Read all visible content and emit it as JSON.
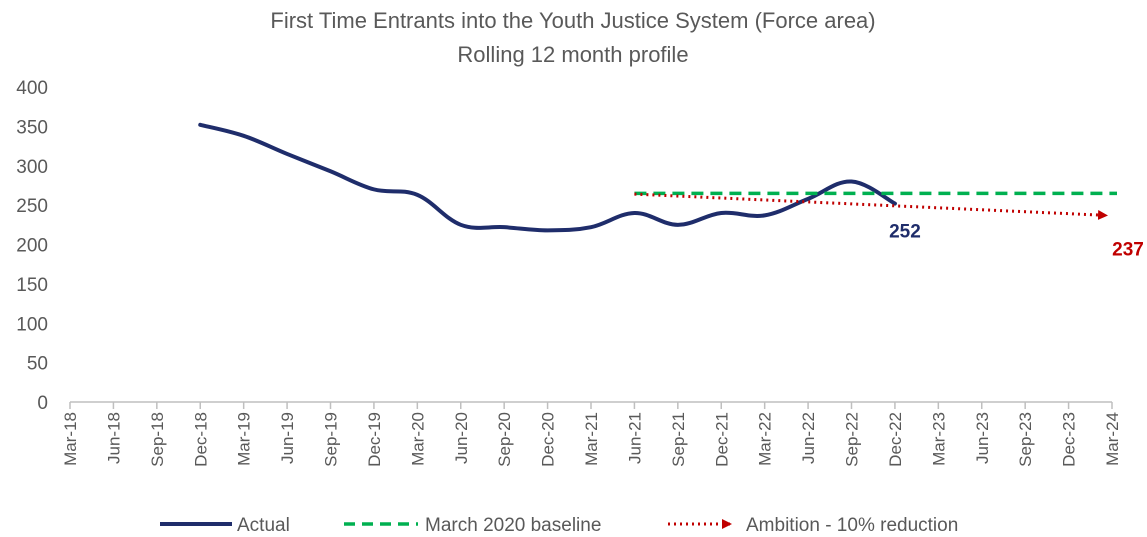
{
  "chart_data": {
    "type": "line",
    "title": "First Time Entrants into the Youth Justice System (Force area)",
    "subtitle": "Rolling 12 month profile",
    "xlabel": "",
    "ylabel": "",
    "ylim": [
      0,
      400
    ],
    "yticks": [
      "0",
      "50",
      "100",
      "150",
      "200",
      "250",
      "300",
      "350",
      "400"
    ],
    "categories": [
      "Mar-18",
      "Jun-18",
      "Sep-18",
      "Dec-18",
      "Mar-19",
      "Jun-19",
      "Sep-19",
      "Dec-19",
      "Mar-20",
      "Jun-20",
      "Sep-20",
      "Dec-20",
      "Mar-21",
      "Jun-21",
      "Sep-21",
      "Dec-21",
      "Mar-22",
      "Jun-22",
      "Sep-22",
      "Dec-22",
      "Mar-23",
      "Jun-23",
      "Sep-23",
      "Dec-23",
      "Mar-24"
    ],
    "grid": false,
    "legend_position": "bottom",
    "series": [
      {
        "name": "Actual",
        "style": "solid",
        "color": "#1f2d6b",
        "x": [
          "Dec-18",
          "Mar-19",
          "Jun-19",
          "Sep-19",
          "Dec-19",
          "Mar-20",
          "Jun-20",
          "Sep-20",
          "Dec-20",
          "Mar-21",
          "Jun-21",
          "Sep-21",
          "Dec-21",
          "Mar-22",
          "Jun-22",
          "Sep-22",
          "Dec-22"
        ],
        "values": [
          352,
          338,
          315,
          293,
          270,
          263,
          225,
          222,
          218,
          222,
          240,
          225,
          240,
          237,
          258,
          280,
          252
        ]
      },
      {
        "name": "March 2020 baseline",
        "style": "dashed",
        "color": "#00b050",
        "x": [
          "Jun-21",
          "Mar-24"
        ],
        "values": [
          265,
          265
        ]
      },
      {
        "name": "Ambition - 10% reduction",
        "style": "dotted-arrow",
        "color": "#c00000",
        "x": [
          "Jun-21",
          "Mar-24"
        ],
        "values": [
          264,
          237
        ]
      }
    ],
    "annotations": [
      {
        "text": "252",
        "series": "Actual",
        "color": "#1f2d6b"
      },
      {
        "text": "237",
        "series": "Ambition - 10% reduction",
        "color": "#c00000"
      }
    ]
  }
}
